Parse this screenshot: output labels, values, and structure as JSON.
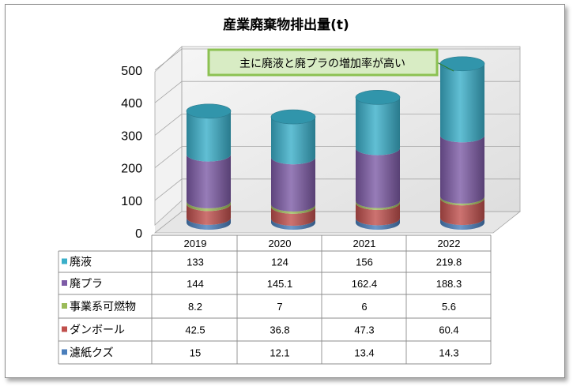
{
  "chart_data": {
    "type": "bar",
    "title": "産業廃棄物排出量(t)",
    "categories": [
      "2019",
      "2020",
      "2021",
      "2022"
    ],
    "ylim": [
      0,
      500
    ],
    "yticks": [
      "0",
      "100",
      "200",
      "300",
      "400",
      "500"
    ],
    "stacked": true,
    "grid": true,
    "legend_placement": "data-table",
    "annotation": "主に廃液と廃プラの増加率が高い",
    "series": [
      {
        "name": "濾紙クズ",
        "values": [
          15,
          12.1,
          13.4,
          14.3
        ],
        "labels": [
          "15",
          "12.1",
          "13.4",
          "14.3"
        ],
        "color": "#4a7ebb"
      },
      {
        "name": "ダンボール",
        "values": [
          42.5,
          36.8,
          47.3,
          60.4
        ],
        "labels": [
          "42.5",
          "36.8",
          "47.3",
          "60.4"
        ],
        "color": "#c0504d"
      },
      {
        "name": "事業系可燃物",
        "values": [
          8.2,
          7,
          6,
          5.6
        ],
        "labels": [
          "8.2",
          "7",
          "6",
          "5.6"
        ],
        "color": "#9bbb59"
      },
      {
        "name": "廃プラ",
        "values": [
          144,
          145.1,
          162.4,
          188.3
        ],
        "labels": [
          "144",
          "145.1",
          "162.4",
          "188.3"
        ],
        "color": "#7d5ba6"
      },
      {
        "name": "廃液",
        "values": [
          133,
          124,
          156,
          219.8
        ],
        "labels": [
          "133",
          "124",
          "156",
          "219.8"
        ],
        "color": "#3aafc9"
      }
    ]
  }
}
